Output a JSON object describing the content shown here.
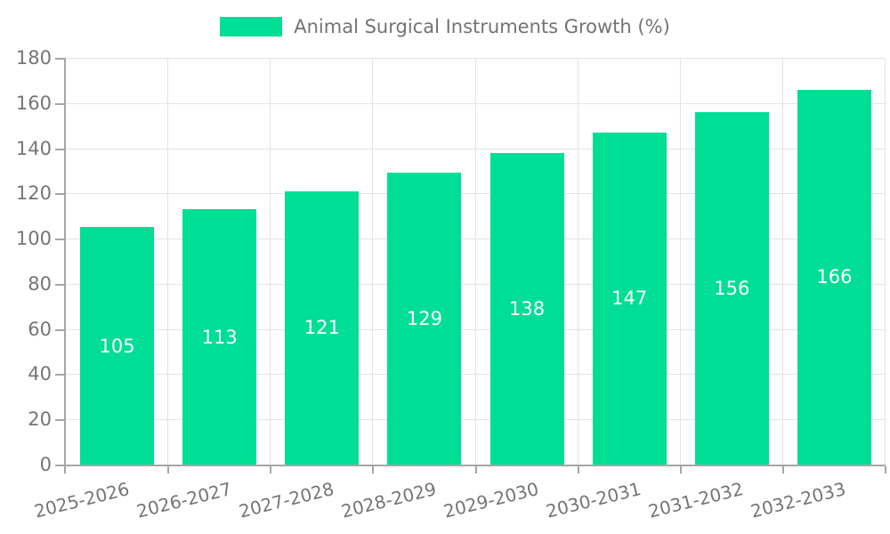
{
  "chart_data": {
    "type": "bar",
    "title": "Animal Surgical Instruments Growth (%)",
    "categories": [
      "2025-2026",
      "2026-2027",
      "2027-2028",
      "2028-2029",
      "2029-2030",
      "2030-2031",
      "2031-2032",
      "2032-2033"
    ],
    "values": [
      105,
      113,
      121,
      129,
      138,
      147,
      156,
      166
    ],
    "value_labels": [
      "105",
      "113",
      "121",
      "129",
      "138",
      "147",
      "156",
      "166"
    ],
    "y_tick_labels": [
      "0",
      "20",
      "40",
      "60",
      "80",
      "100",
      "120",
      "140",
      "160",
      "180"
    ],
    "xlabel": "",
    "ylabel": "",
    "ylim": [
      0,
      180
    ],
    "ytick_step": 20,
    "grid": true,
    "legend_position": "top-center",
    "legend_label": "Animal Surgical Instruments Growth (%)",
    "x_tick_rotation_deg": -14,
    "bar_color": "#00de96",
    "value_label_color": "#ffffff",
    "tick_label_color": "#757575",
    "legend_text_color": "#737373",
    "grid_color": "#e4e4e4",
    "axis_color": "#a6a6a6",
    "background_color": "#ffffff"
  }
}
